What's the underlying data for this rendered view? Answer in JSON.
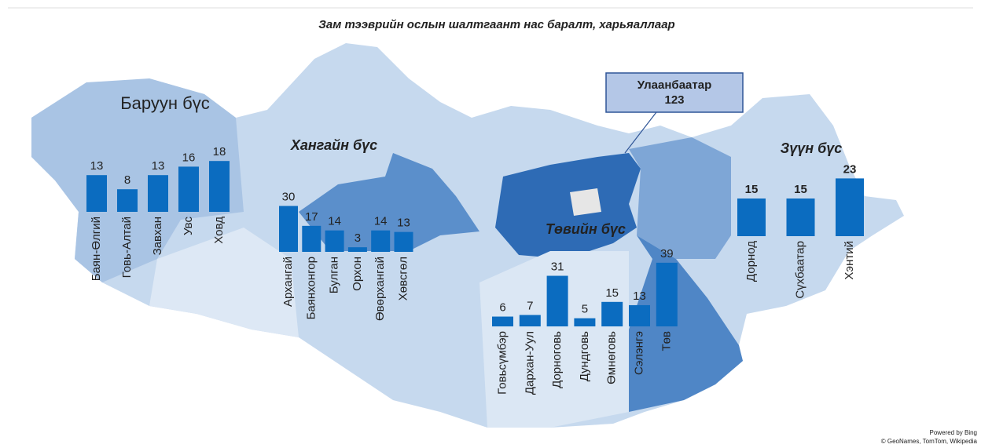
{
  "title": "Зам тээврийн ослын шалтгаант нас баралт, харьяаллаар",
  "regions": [
    {
      "name": "Баруун бүс",
      "categories": [
        "Баян-Өлгий",
        "Говь-Алтай",
        "Завхан",
        "Увс",
        "Ховд"
      ],
      "values": [
        13,
        8,
        13,
        16,
        18
      ]
    },
    {
      "name": "Хангайн бүс",
      "categories": [
        "Архангай",
        "Баянхонгор",
        "Булган",
        "Орхон",
        "Өвөрхангай",
        "Хөвсгөл"
      ],
      "values": [
        30,
        17,
        14,
        3,
        14,
        13
      ]
    },
    {
      "name": "Төвийн бүс",
      "categories": [
        "Говьсүмбэр",
        "Дархан-Уул",
        "Дорноговь",
        "Дундговь",
        "Өмнөговь",
        "Сэлэнгэ",
        "Төв"
      ],
      "values": [
        6,
        7,
        31,
        5,
        15,
        13,
        39
      ]
    },
    {
      "name": "Зүүн бүс",
      "categories": [
        "Дорнод",
        "Сүхбаатар",
        "Хэнтий"
      ],
      "values": [
        15,
        15,
        23
      ]
    }
  ],
  "callout": {
    "name": "Улаанбаатар",
    "value": 123
  },
  "credit": [
    "Powered by Bing",
    "© GeoNames, TomTom, Wikipedia"
  ]
}
